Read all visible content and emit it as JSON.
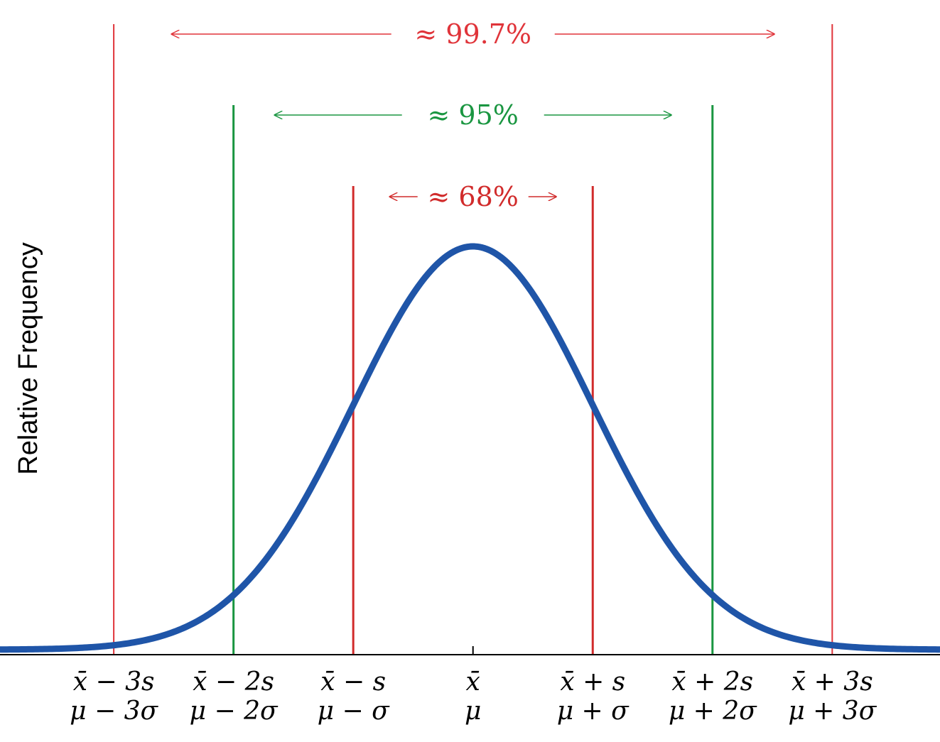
{
  "chart_data": {
    "type": "line",
    "title": "",
    "xlabel": "",
    "ylabel": "Relative Frequency",
    "xlim": [
      -3.95,
      3.9
    ],
    "ylim": [
      0,
      0.42
    ],
    "grid": false,
    "curve": {
      "kind": "normal-pdf",
      "mean": 0,
      "sd": 1,
      "color": "#1f55a8"
    },
    "ticks": [
      {
        "x": -3,
        "sample": "x̄ − 3s",
        "population": "μ − 3σ"
      },
      {
        "x": -2,
        "sample": "x̄ − 2s",
        "population": "μ − 2σ"
      },
      {
        "x": -1,
        "sample": "x̄ − s",
        "population": "μ − σ"
      },
      {
        "x": 0,
        "sample": "x̄",
        "population": "μ"
      },
      {
        "x": 1,
        "sample": "x̄ + s",
        "population": "μ + σ"
      },
      {
        "x": 2,
        "sample": "x̄ + 2s",
        "population": "μ + 2σ"
      },
      {
        "x": 3,
        "sample": "x̄ + 3s",
        "population": "μ + 3σ"
      }
    ],
    "bands": [
      {
        "label": "≈ 68%",
        "k": 1,
        "color": "#d12b2b"
      },
      {
        "label": "≈ 95%",
        "k": 2,
        "color": "#1a9641"
      },
      {
        "label": "≈ 99.7%",
        "k": 3,
        "color": "#e0343a"
      }
    ]
  }
}
